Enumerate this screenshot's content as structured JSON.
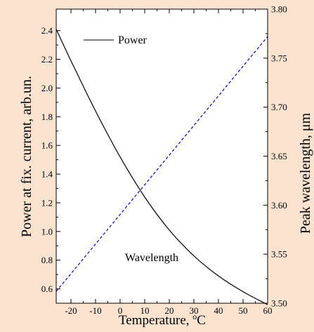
{
  "chart_data": {
    "type": "line",
    "xlabel": "Temperature, °C",
    "ylabel_left": "Power at fix. current, arb.un.",
    "ylabel_right": "Peak wavelength, μm",
    "xlim": [
      -26,
      60
    ],
    "ylim_left": [
      0.5,
      2.55
    ],
    "ylim_right": [
      3.5,
      3.8
    ],
    "xticks": [
      -20,
      -10,
      0,
      10,
      20,
      30,
      40,
      50,
      60
    ],
    "yticks_left": [
      0.6,
      0.8,
      1.0,
      1.2,
      1.4,
      1.6,
      1.8,
      2.0,
      2.2,
      2.4
    ],
    "yticks_right": [
      3.5,
      3.55,
      3.6,
      3.65,
      3.7,
      3.75,
      3.8
    ],
    "xtick_labels": [
      "-20",
      "-10",
      "0",
      "10",
      "20",
      "30",
      "40",
      "50",
      "60"
    ],
    "ytick_labels_left": [
      "0.6",
      "0.8",
      "1.0",
      "1.2",
      "1.4",
      "1.6",
      "1.8",
      "2.0",
      "2.2",
      "2.4"
    ],
    "ytick_labels_right": [
      "3.50",
      "3.55",
      "3.60",
      "3.65",
      "3.70",
      "3.75",
      "3.80"
    ],
    "series": [
      {
        "name": "Power",
        "axis": "left",
        "color": "#000000",
        "style": "solid",
        "x": [
          -26,
          -20,
          -10,
          0,
          10,
          20,
          30,
          40,
          50,
          60
        ],
        "values": [
          2.41,
          2.19,
          1.84,
          1.52,
          1.24,
          1.01,
          0.83,
          0.69,
          0.58,
          0.49
        ]
      },
      {
        "name": "Wavelength",
        "axis": "right",
        "color": "#0000cc",
        "style": "dashed",
        "x": [
          -26,
          60
        ],
        "values": [
          3.512,
          3.772
        ]
      }
    ],
    "annotations": {
      "power_label": "Power",
      "wavelength_label": "Wavelength"
    },
    "grid": false,
    "legend": "top-left"
  }
}
